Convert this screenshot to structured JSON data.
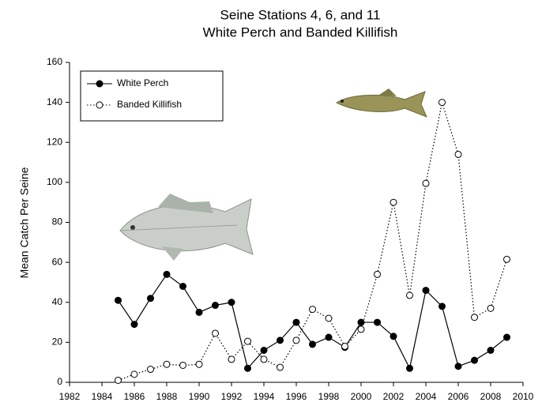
{
  "chart_data": {
    "type": "line",
    "title": "Seine Stations 4, 6, and 11",
    "subtitle": "White Perch and Banded Killifish",
    "y_label": "Mean Catch Per Seine",
    "x": [
      1985,
      1986,
      1987,
      1988,
      1989,
      1990,
      1991,
      1992,
      1993,
      1994,
      1995,
      1996,
      1997,
      1998,
      1999,
      2000,
      2001,
      2002,
      2003,
      2004,
      2005,
      2006,
      2007,
      2008,
      2009
    ],
    "series": [
      {
        "name": "White Perch",
        "color": "#000000",
        "marker_fill": "#000000",
        "linestyle": "solid",
        "values": [
          41,
          29,
          42,
          54,
          48,
          35,
          38.5,
          40,
          7,
          16,
          21,
          30,
          19,
          22.5,
          17.5,
          30,
          30,
          23,
          7,
          46,
          38,
          8,
          11,
          16,
          22.5
        ]
      },
      {
        "name": "Banded Killifish",
        "color": "#000000",
        "marker_fill": "#ffffff",
        "linestyle": "dotted",
        "values": [
          1,
          4,
          6.5,
          9,
          8.5,
          9,
          24.5,
          11.5,
          20.5,
          11.5,
          7.5,
          21,
          36.5,
          32,
          18,
          26.5,
          54,
          90,
          43.5,
          99.5,
          140,
          114,
          32.5,
          37,
          61.5
        ]
      }
    ],
    "xlim": [
      1982,
      2010
    ],
    "xticks": [
      1982,
      1984,
      1986,
      1988,
      1990,
      1992,
      1994,
      1996,
      1998,
      2000,
      2002,
      2004,
      2006,
      2008,
      2010
    ],
    "ylim": [
      0,
      160
    ],
    "yticks": [
      0,
      20,
      40,
      60,
      80,
      100,
      120,
      140,
      160
    ],
    "grid": false,
    "legend": "upper left"
  }
}
